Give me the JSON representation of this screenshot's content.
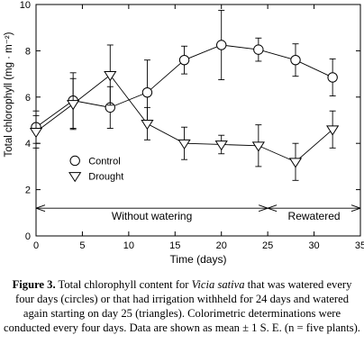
{
  "chart_data": {
    "type": "line",
    "xlabel": "Time (days)",
    "ylabel": "Total chlorophyll (mg · m⁻²)",
    "xlim": [
      0,
      35
    ],
    "ylim": [
      0,
      10
    ],
    "xticks": [
      "0",
      "5",
      "10",
      "15",
      "20",
      "25",
      "30",
      "35"
    ],
    "yticks": [
      "0",
      "2",
      "4",
      "6",
      "8",
      "10"
    ],
    "grid": false,
    "legend_position": "lower-left",
    "series": [
      {
        "name": "Control",
        "marker": "circle",
        "x": [
          0,
          4,
          8,
          12,
          16,
          20,
          24,
          28,
          32
        ],
        "y": [
          4.7,
          5.85,
          5.55,
          6.2,
          7.6,
          8.25,
          8.05,
          7.6,
          6.85
        ],
        "err": [
          0.7,
          1.2,
          0.9,
          1.4,
          0.6,
          1.5,
          0.5,
          0.7,
          0.8
        ]
      },
      {
        "name": "Drought",
        "marker": "triangle-down",
        "x": [
          0,
          4,
          8,
          12,
          16,
          20,
          24,
          28,
          32
        ],
        "y": [
          4.5,
          5.7,
          6.95,
          4.85,
          4.0,
          3.95,
          3.9,
          3.2,
          4.6
        ],
        "err": [
          0.7,
          1.1,
          1.3,
          0.7,
          0.7,
          0.4,
          0.9,
          0.8,
          0.8
        ]
      }
    ],
    "annotations": {
      "without_watering": "Without watering",
      "rewatered": "Rewatered",
      "arrow_level": 1.2,
      "split_day": 25
    }
  },
  "caption": {
    "figure_label": "Figure 3.",
    "part1": " Total chlorophyll content for ",
    "species": "Vicia sativa",
    "part2": " that was watered every four days (circles) or that had irrigation withheld for 24 days and watered again starting on day 25 (triangles). Colorimetric determinations were conducted every four days. Data are shown as mean ± 1 S. E. (n = five plants)."
  }
}
